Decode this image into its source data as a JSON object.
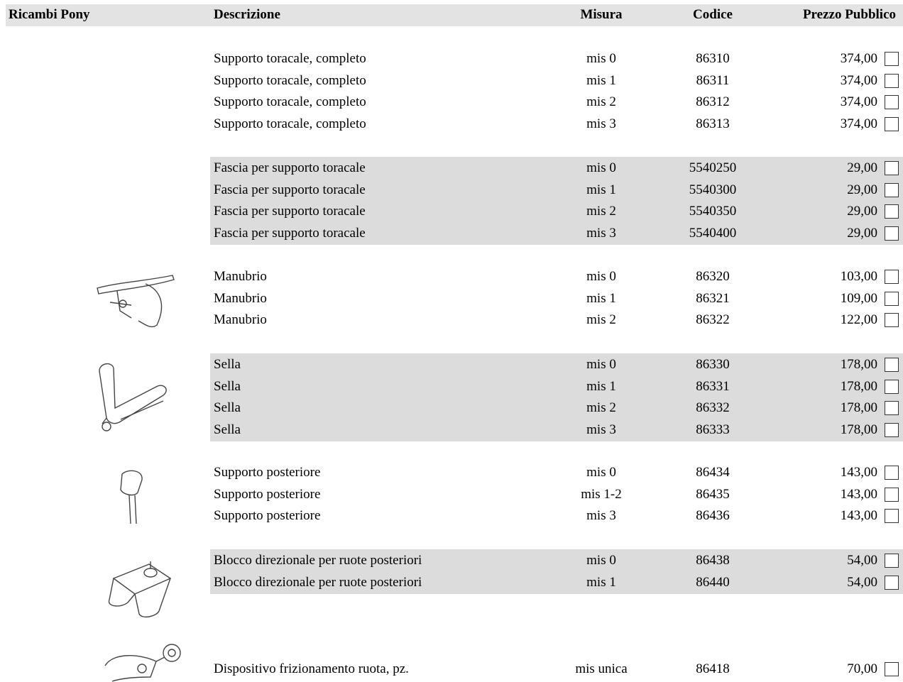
{
  "header": {
    "columns": [
      "Ricambi Pony",
      "Descrizione",
      "Misura",
      "Codice",
      "Prezzo Pubblico"
    ]
  },
  "groups": [
    {
      "rows": [
        [
          "Supporto toracale, completo",
          "mis 0",
          "86310",
          "374,00"
        ],
        [
          "Supporto toracale, completo",
          "mis 1",
          "86311",
          "374,00"
        ],
        [
          "Supporto toracale, completo",
          "mis 2",
          "86312",
          "374,00"
        ],
        [
          "Supporto toracale, completo",
          "mis 3",
          "86313",
          "374,00"
        ]
      ]
    },
    {
      "rows": [
        [
          "Fascia per supporto toracale",
          "mis 0",
          "5540250",
          "29,00"
        ],
        [
          "Fascia per supporto toracale",
          "mis 1",
          "5540300",
          "29,00"
        ],
        [
          "Fascia per supporto toracale",
          "mis 2",
          "5540350",
          "29,00"
        ],
        [
          "Fascia per supporto toracale",
          "mis 3",
          "5540400",
          "29,00"
        ]
      ]
    },
    {
      "rows": [
        [
          "Manubrio",
          "mis 0",
          "86320",
          "103,00"
        ],
        [
          "Manubrio",
          "mis 1",
          "86321",
          "109,00"
        ],
        [
          "Manubrio",
          "mis 2",
          "86322",
          "122,00"
        ]
      ]
    },
    {
      "rows": [
        [
          "Sella",
          "mis 0",
          "86330",
          "178,00"
        ],
        [
          "Sella",
          "mis 1",
          "86331",
          "178,00"
        ],
        [
          "Sella",
          "mis 2",
          "86332",
          "178,00"
        ],
        [
          "Sella",
          "mis 3",
          "86333",
          "178,00"
        ]
      ]
    },
    {
      "rows": [
        [
          "Supporto posteriore",
          "mis 0",
          "86434",
          "143,00"
        ],
        [
          "Supporto posteriore",
          "mis 1-2",
          "86435",
          "143,00"
        ],
        [
          "Supporto posteriore",
          "mis 3",
          "86436",
          "143,00"
        ]
      ]
    },
    {
      "rows": [
        [
          "Blocco direzionale per ruote posteriori",
          "mis 0",
          "86438",
          "54,00"
        ],
        [
          "Blocco direzionale per ruote posteriori",
          "mis 1",
          "86440",
          "54,00"
        ]
      ]
    },
    {
      "rows": [
        [
          "Dispositivo frizionamento ruota, pz.",
          "mis unica",
          "86418",
          "70,00"
        ]
      ]
    }
  ]
}
